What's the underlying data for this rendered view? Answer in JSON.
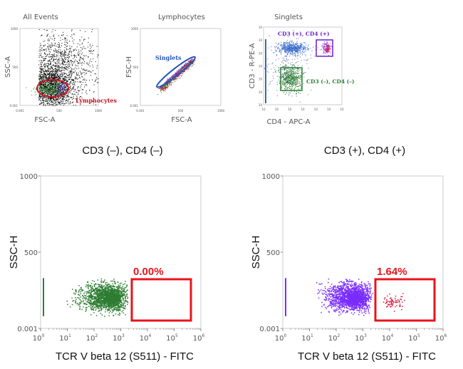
{
  "chart_data": [
    {
      "type": "scatter",
      "title": "All Events",
      "xlabel": "FSC-A",
      "ylabel": "SSC-A",
      "xlim": [
        0,
        1000
      ],
      "ylim": [
        0,
        1000
      ],
      "xticks": [
        "0.001",
        "500",
        "1000"
      ],
      "yticks": [
        "0.001",
        "500",
        "1000"
      ],
      "gate": {
        "name": "Lymphocytes",
        "shape": "ellipse",
        "color": "#cc1122"
      }
    },
    {
      "type": "scatter",
      "title": "Lymphocytes",
      "xlabel": "FSC-A",
      "ylabel": "FSC-H",
      "xlim": [
        0,
        1000
      ],
      "ylim": [
        0,
        1000
      ],
      "xticks": [
        "0.001",
        "500",
        "1000"
      ],
      "yticks": [
        "0.001",
        "500",
        "1000"
      ],
      "gate": {
        "name": "Singlets",
        "shape": "ellipse",
        "color": "#2255bb"
      }
    },
    {
      "type": "scatter",
      "title": "Singlets",
      "xlabel": "CD4 - APC-A",
      "ylabel": "CD3 - R-PE-A",
      "scale": "log",
      "xlim": [
        1,
        1000000
      ],
      "ylim": [
        1,
        1000000
      ],
      "xticks": [
        "10",
        "10",
        "10",
        "10",
        "10",
        "10",
        "10"
      ],
      "yticks": [
        "10",
        "10",
        "10",
        "10",
        "10",
        "10",
        "10"
      ],
      "gates": [
        {
          "name": "CD3 (+), CD4 (+)",
          "color": "#6a1fd0"
        },
        {
          "name": "CD3 (–), CD4 (–)",
          "color": "#2e7d32"
        }
      ]
    },
    {
      "type": "scatter",
      "title": "CD3 (–), CD4 (–)",
      "xlabel": "TCR V beta 12 (S511) - FITC",
      "ylabel": "SSC-H",
      "xscale": "log",
      "xlim": [
        1,
        1000000
      ],
      "ylim": [
        0,
        1000
      ],
      "xticks": [
        "10",
        "10",
        "10",
        "10",
        "10",
        "10",
        "10"
      ],
      "xtick_exponents": [
        "0",
        "1",
        "2",
        "3",
        "4",
        "5",
        "6"
      ],
      "yticks": [
        "0.001",
        "500",
        "1000"
      ],
      "point_color": "#2e7d32",
      "gate": {
        "percent": "0.00%",
        "color": "#e8141c"
      }
    },
    {
      "type": "scatter",
      "title": "CD3 (+), CD4 (+)",
      "xlabel": "TCR V beta 12 (S511) - FITC",
      "ylabel": "SSC-H",
      "xscale": "log",
      "xlim": [
        1,
        1000000
      ],
      "ylim": [
        0,
        1000
      ],
      "xticks": [
        "10",
        "10",
        "10",
        "10",
        "10",
        "10",
        "10"
      ],
      "xtick_exponents": [
        "0",
        "1",
        "2",
        "3",
        "4",
        "5",
        "6"
      ],
      "yticks": [
        "0.001",
        "500",
        "1000"
      ],
      "point_color": "#7a2cff",
      "gate_point_color": "#d81b3c",
      "gate": {
        "percent": "1.64%",
        "color": "#e8141c"
      }
    }
  ]
}
